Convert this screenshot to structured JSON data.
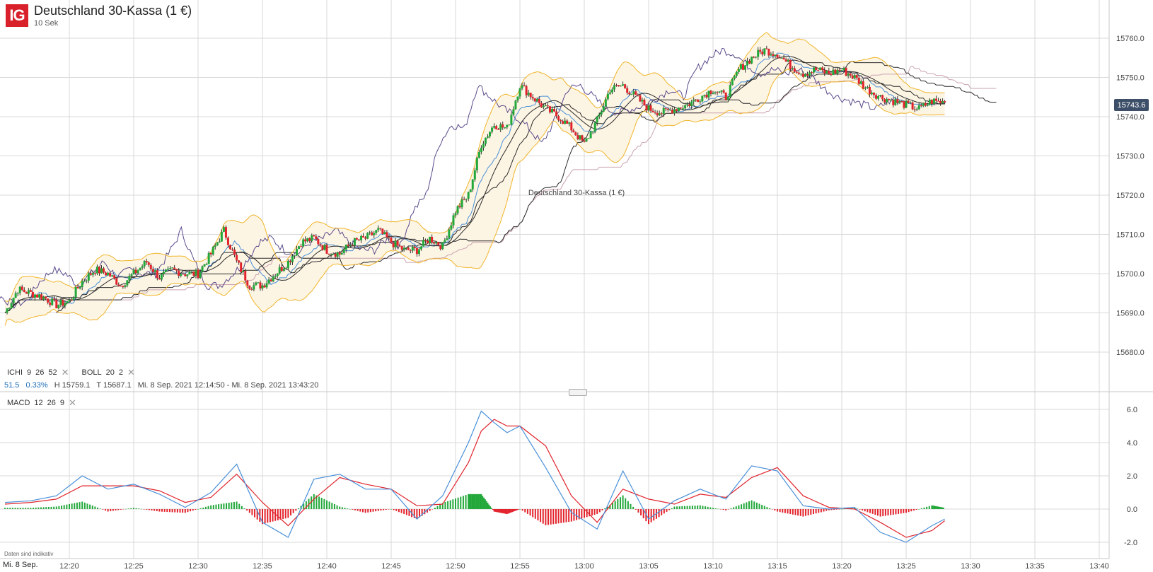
{
  "header": {
    "logo_text": "IG",
    "title": "Deutschland 30-Kassa (1 €)",
    "interval": "10 Sek",
    "watermark": "Deutschland 30-Kassa (1 €)"
  },
  "current_price": "15743.6",
  "indicators": {
    "ichi": {
      "name": "ICHI",
      "params": [
        "9",
        "26",
        "52"
      ]
    },
    "boll": {
      "name": "BOLL",
      "params": [
        "20",
        "2"
      ]
    },
    "macd": {
      "name": "MACD",
      "params": [
        "12",
        "26",
        "9"
      ]
    },
    "close_symbol": "✕"
  },
  "stats": {
    "change": "51.5",
    "change_pct": "0.33%",
    "high": "H 15759.1",
    "low": "T 15687.1",
    "range": "Mi. 8 Sep. 2021 12:14:50 - Mi. 8 Sep. 2021 13:43:20"
  },
  "footnote": "Daten sind indikativ",
  "date_label": "Mi. 8 Sep.",
  "colors": {
    "up": "#22a83a",
    "down": "#e3232c",
    "boll": "#f0b429",
    "boll_fill": "#fdf5e4",
    "cloud_fill": "#f6ecea",
    "macd": "#4a90d9",
    "signal": "#e0242c",
    "grid": "#d9d9d9",
    "ichi_dark": "#2a2a2a",
    "ichi_purple": "#5a4a8a",
    "ichi_blue": "#4a90d9",
    "ichi_span_b": "#c9a2b0"
  },
  "chart_data": [
    {
      "type": "candlestick",
      "title": "Deutschland 30-Kassa (1 €)",
      "x_ticks": [
        "12:20",
        "12:25",
        "12:30",
        "12:35",
        "12:40",
        "12:45",
        "12:50",
        "12:55",
        "13:00",
        "13:05",
        "13:10",
        "13:15",
        "13:20",
        "13:25",
        "13:30",
        "13:35",
        "13:40"
      ],
      "y_ticks": [
        "15680.0",
        "15690.0",
        "15700.0",
        "15710.0",
        "15720.0",
        "15730.0",
        "15740.0",
        "15750.0",
        "15760.0"
      ],
      "ylim": [
        15675,
        15762
      ],
      "price_series": {
        "time": [
          "12:15",
          "12:16",
          "12:17",
          "12:18",
          "12:19",
          "12:20",
          "12:21",
          "12:22",
          "12:23",
          "12:24",
          "12:25",
          "12:26",
          "12:27",
          "12:28",
          "12:29",
          "12:30",
          "12:31",
          "12:32",
          "12:33",
          "12:34",
          "12:35",
          "12:36",
          "12:37",
          "12:38",
          "12:39",
          "12:40",
          "12:41",
          "12:42",
          "12:43",
          "12:44",
          "12:45",
          "12:46",
          "12:47",
          "12:48",
          "12:49",
          "12:50",
          "12:51",
          "12:52",
          "12:53",
          "12:54",
          "12:55",
          "12:56",
          "12:57",
          "12:58",
          "12:59",
          "13:00",
          "13:01",
          "13:02",
          "13:03",
          "13:04",
          "13:05",
          "13:06",
          "13:07",
          "13:08",
          "13:09",
          "13:10",
          "13:11",
          "13:12",
          "13:13",
          "13:14",
          "13:15",
          "13:16",
          "13:17",
          "13:18",
          "13:19",
          "13:20",
          "13:21",
          "13:22",
          "13:23",
          "13:24",
          "13:25",
          "13:26",
          "13:27",
          "13:28"
        ],
        "value": [
          15690,
          15696,
          15695,
          15694,
          15692,
          15693,
          15698,
          15701,
          15700,
          15697,
          15700,
          15703,
          15699,
          15701,
          15700,
          15700,
          15705,
          15711,
          15703,
          15697,
          15697,
          15700,
          15703,
          15708,
          15709,
          15706,
          15705,
          15708,
          15709,
          15711,
          15708,
          15706,
          15706,
          15709,
          15707,
          15716,
          15720,
          15733,
          15738,
          15737,
          15748,
          15745,
          15742,
          15740,
          15737,
          15733,
          15739,
          15747,
          15748,
          15745,
          15742,
          15741,
          15742,
          15743,
          15745,
          15747,
          15745,
          15752,
          15755,
          15757,
          15756,
          15753,
          15751,
          15752,
          15751,
          15752,
          15750,
          15747,
          15745,
          15744,
          15743,
          15742,
          15744,
          15743.6
        ]
      },
      "bollinger": {
        "period": "20",
        "dev": "2"
      },
      "ichimoku": {
        "tenkan": "9",
        "kijun": "26",
        "senkou": "52"
      }
    },
    {
      "type": "line+histogram",
      "title": "MACD 12 26 9",
      "y_ticks": [
        "-2.0",
        "0.0",
        "2.0",
        "4.0",
        "6.0"
      ],
      "ylim": [
        -2.2,
        6.2
      ],
      "time": [
        "12:15",
        "12:17",
        "12:19",
        "12:21",
        "12:23",
        "12:25",
        "12:27",
        "12:29",
        "12:31",
        "12:33",
        "12:35",
        "12:37",
        "12:39",
        "12:41",
        "12:43",
        "12:45",
        "12:47",
        "12:49",
        "12:51",
        "12:52",
        "12:53",
        "12:54",
        "12:55",
        "12:57",
        "12:59",
        "13:01",
        "13:03",
        "13:05",
        "13:07",
        "13:09",
        "13:11",
        "13:13",
        "13:15",
        "13:17",
        "13:19",
        "13:21",
        "13:23",
        "13:25",
        "13:27",
        "13:28"
      ],
      "series": [
        {
          "name": "MACD",
          "values": [
            0.4,
            0.5,
            0.8,
            2.0,
            1.2,
            1.5,
            0.9,
            0.1,
            1.0,
            2.7,
            -0.8,
            -1.7,
            1.8,
            2.1,
            1.2,
            1.2,
            -0.6,
            0.8,
            4.0,
            5.9,
            5.2,
            4.6,
            5.0,
            2.5,
            -0.2,
            -1.2,
            2.3,
            -0.6,
            0.5,
            1.2,
            0.6,
            2.6,
            2.3,
            0.2,
            0.0,
            0.1,
            -1.4,
            -2.0,
            -1.0,
            -0.6
          ]
        },
        {
          "name": "Signal",
          "values": [
            0.3,
            0.4,
            0.6,
            1.4,
            1.4,
            1.4,
            1.1,
            0.4,
            0.7,
            2.1,
            0.4,
            -1.0,
            0.6,
            1.9,
            1.5,
            1.2,
            0.2,
            0.3,
            2.8,
            4.7,
            5.4,
            5.0,
            5.0,
            3.8,
            0.8,
            -0.8,
            1.2,
            0.6,
            0.3,
            0.9,
            0.7,
            1.9,
            2.5,
            0.8,
            0.1,
            0.0,
            -0.8,
            -1.7,
            -1.3,
            -0.7
          ]
        }
      ]
    }
  ]
}
